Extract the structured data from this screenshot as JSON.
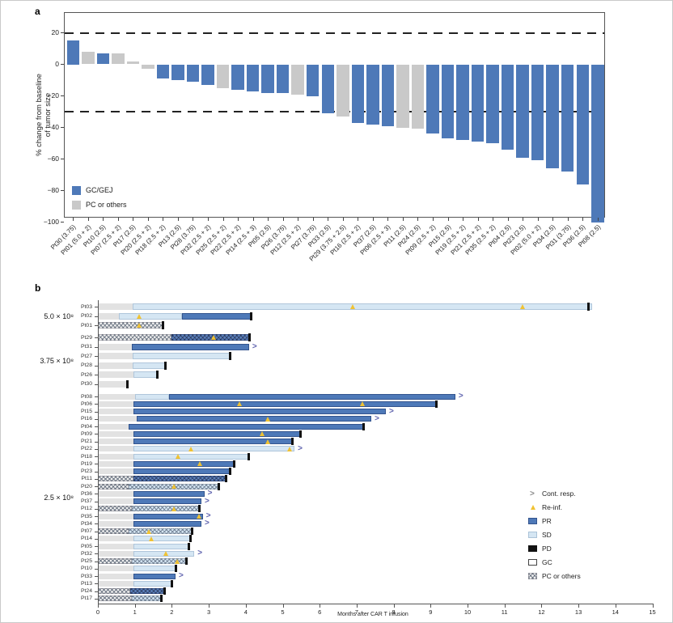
{
  "colors": {
    "gc_gej_blue": "#4e79b8",
    "pc_gray": "#c9c9c9",
    "sd_lightblue": "#d5e6f3",
    "pd_black": "#121212",
    "gc_lead_gray": "#e2e2e2",
    "reinf_yellow": "#f0c233",
    "cont_arrow_blue": "#5e62ae",
    "legend_arrow_gray": "#8a8a8a",
    "refline_black": "#222222"
  },
  "chart_data": [
    {
      "id": "a",
      "panel_label": "a",
      "type": "bar",
      "subtype": "waterfall",
      "ylabel": "% change from baseline of tumor size",
      "ylabel_lines": [
        "% change from baseline",
        "of tumor size"
      ],
      "ylim": [
        -100,
        25
      ],
      "yticks": [
        20,
        0,
        -20,
        -40,
        -60,
        -80,
        -100
      ],
      "reference_lines_y": [
        20,
        -30
      ],
      "grid": false,
      "legend_position": "bottom-left-inside",
      "legend": [
        {
          "label": "GC/GEJ",
          "colorKey": "gc_gej_blue"
        },
        {
          "label": "PC or others",
          "colorKey": "pc_gray"
        }
      ],
      "categories": [
        "Pt30 (3.75)",
        "Pt01 (5.0 + 2)",
        "Pt10 (2.5)",
        "Pt07 (2.5 + 2)",
        "Pt17 (2.5)",
        "Pt20 (2.5 + 2)",
        "Pt18 (2.5 + 2)",
        "Pt13 (2.5)",
        "Pt28 (3.75)",
        "Pt32 (2.5 + 2)",
        "Pt25 (2.5 + 2)",
        "Pt22 (2.5 + 2)",
        "Pt14 (2.5 + 3)",
        "Pt05 (2.5)",
        "Pt26 (3.75)",
        "Pt12 (2.5 + 2)",
        "Pt27 (3.75)",
        "Pt33 (2.5)",
        "Pt29 (3.75 + 2.5)",
        "Pt16 (2.5 + 2)",
        "Pt37 (2.5)",
        "Pt06 (2.5 + 3)",
        "Pt11 (2.5)",
        "Pt24 (2.5)",
        "Pt09 (2.5 + 2)",
        "Pt15 (2.5)",
        "Pt19 (2.5 + 2)",
        "Pt21 (2.5 + 2)",
        "Pt35 (2.5 + 2)",
        "Pt04 (2.5)",
        "Pt23 (2.5)",
        "Pt02 (5.0 + 2)",
        "Pt34 (2.5)",
        "Pt31 (3.75)",
        "Pt36 (2.5)",
        "Pt08 (2.5)"
      ],
      "values": [
        15,
        8,
        7,
        7,
        2,
        -3,
        -9,
        -10,
        -11,
        -13,
        -15,
        -16,
        -17,
        -18,
        -18,
        -19,
        -20,
        -31,
        -33,
        -37,
        -38,
        -39,
        -40,
        -41,
        -44,
        -47,
        -48,
        -49,
        -50,
        -54,
        -59,
        -61,
        -66,
        -68,
        -76,
        -100
      ],
      "groups": [
        "GC/GEJ",
        "PC or others",
        "GC/GEJ",
        "PC or others",
        "PC or others",
        "PC or others",
        "GC/GEJ",
        "GC/GEJ",
        "GC/GEJ",
        "GC/GEJ",
        "PC or others",
        "GC/GEJ",
        "GC/GEJ",
        "GC/GEJ",
        "GC/GEJ",
        "PC or others",
        "GC/GEJ",
        "GC/GEJ",
        "PC or others",
        "GC/GEJ",
        "GC/GEJ",
        "GC/GEJ",
        "PC or others",
        "PC or others",
        "GC/GEJ",
        "GC/GEJ",
        "GC/GEJ",
        "GC/GEJ",
        "GC/GEJ",
        "GC/GEJ",
        "GC/GEJ",
        "GC/GEJ",
        "GC/GEJ",
        "GC/GEJ",
        "GC/GEJ",
        "GC/GEJ"
      ]
    },
    {
      "id": "b",
      "panel_label": "b",
      "type": "swimmer",
      "xlabel": "Months after CAR T infusion",
      "xlim": [
        0,
        15
      ],
      "xticks": [
        0,
        1,
        2,
        3,
        4,
        5,
        6,
        7,
        8,
        9,
        10,
        11,
        12,
        13,
        14,
        15
      ],
      "legend": [
        {
          "key": "cont",
          "label": "Cont. resp."
        },
        {
          "key": "reinf",
          "label": "Re-inf."
        },
        {
          "key": "pr",
          "label": "PR"
        },
        {
          "key": "sd",
          "label": "SD"
        },
        {
          "key": "pd",
          "label": "PD"
        },
        {
          "key": "gc",
          "label": "GC"
        },
        {
          "key": "pc",
          "label": "PC or others"
        }
      ],
      "groups": [
        {
          "label": "5.0 × 10⁸",
          "rows": [
            {
              "label": "Pt03",
              "segments": [
                [
                  "gc",
                  0,
                  0.93
                ],
                [
                  "sd",
                  0.93,
                  13.37
                ]
              ],
              "pd": 13.3,
              "reinf": [
                6.9,
                11.5
              ],
              "cont": false
            },
            {
              "label": "Pt02",
              "segments": [
                [
                  "gc",
                  0,
                  0.57
                ],
                [
                  "sd",
                  0.57,
                  2.28
                ],
                [
                  "pr",
                  2.28,
                  4.16
                ]
              ],
              "pd": 4.16,
              "reinf": [
                1.13
              ],
              "cont": false
            },
            {
              "label": "Pt01",
              "segments": [
                [
                  "pc",
                  0,
                  1.79
                ]
              ],
              "pd": 1.79,
              "reinf": [
                1.13
              ],
              "cont": false
            }
          ]
        },
        {
          "label": "3.75 × 10⁸",
          "rows": [
            {
              "label": "Pt29",
              "segments": [
                [
                  "pc",
                  0,
                  2.0
                ],
                [
                  "pr_hatch",
                  2.0,
                  4.12
                ]
              ],
              "pd": 4.12,
              "reinf": [
                3.14
              ],
              "cont": false
            },
            {
              "label": "Pt31",
              "segments": [
                [
                  "gc",
                  0,
                  0.91
                ],
                [
                  "pr",
                  0.91,
                  4.09
                ]
              ],
              "pd": null,
              "reinf": [],
              "cont": true
            },
            {
              "label": "Pt27",
              "segments": [
                [
                  "gc",
                  0,
                  0.93
                ],
                [
                  "sd",
                  0.93,
                  3.61
                ]
              ],
              "pd": 3.61,
              "reinf": [],
              "cont": false
            },
            {
              "label": "Pt28",
              "segments": [
                [
                  "gc",
                  0,
                  0.93
                ],
                [
                  "sd",
                  0.93,
                  1.84
                ]
              ],
              "pd": 1.84,
              "reinf": [],
              "cont": false
            },
            {
              "label": "Pt26",
              "segments": [
                [
                  "gc",
                  0,
                  0.96
                ],
                [
                  "sd",
                  0.96,
                  1.62
                ]
              ],
              "pd": 1.62,
              "reinf": [],
              "cont": false
            },
            {
              "label": "Pt30",
              "segments": [
                [
                  "gc",
                  0,
                  0.82
                ]
              ],
              "pd": 0.82,
              "reinf": [],
              "cont": false
            }
          ]
        },
        {
          "label": "2.5 × 10⁸",
          "rows": [
            {
              "label": "Pt08",
              "segments": [
                [
                  "gc",
                  0,
                  1.0
                ],
                [
                  "sd",
                  1.0,
                  1.93
                ],
                [
                  "pr",
                  1.93,
                  9.67
                ]
              ],
              "pd": null,
              "reinf": [],
              "cont": true
            },
            {
              "label": "Pt06",
              "segments": [
                [
                  "gc",
                  0,
                  0.96
                ],
                [
                  "pr",
                  0.96,
                  9.17
                ]
              ],
              "pd": 9.17,
              "reinf": [
                3.84,
                7.17
              ],
              "cont": false
            },
            {
              "label": "Pt15",
              "segments": [
                [
                  "gc",
                  0,
                  0.96
                ],
                [
                  "pr",
                  0.96,
                  7.79
                ]
              ],
              "pd": null,
              "reinf": [],
              "cont": true
            },
            {
              "label": "Pt16",
              "segments": [
                [
                  "gc",
                  0,
                  1.04
                ],
                [
                  "pr",
                  1.04,
                  7.4
                ]
              ],
              "pd": null,
              "reinf": [
                4.61
              ],
              "cont": true
            },
            {
              "label": "Pt04",
              "segments": [
                [
                  "gc",
                  0,
                  0.84
                ],
                [
                  "pr",
                  0.84,
                  7.2
                ]
              ],
              "pd": 7.2,
              "reinf": [],
              "cont": false
            },
            {
              "label": "Pt09",
              "segments": [
                [
                  "gc",
                  0,
                  0.96
                ],
                [
                  "pr",
                  0.96,
                  5.5
                ]
              ],
              "pd": 5.5,
              "reinf": [
                4.46
              ],
              "cont": false
            },
            {
              "label": "Pt21",
              "segments": [
                [
                  "gc",
                  0,
                  0.96
                ],
                [
                  "pr",
                  0.96,
                  5.28
                ]
              ],
              "pd": 5.28,
              "reinf": [
                4.61
              ],
              "cont": false
            },
            {
              "label": "Pt22",
              "segments": [
                [
                  "gc",
                  0,
                  0.96
                ],
                [
                  "sd",
                  0.96,
                  5.32
                ]
              ],
              "pd": null,
              "reinf": [
                2.53,
                5.2
              ],
              "cont": true
            },
            {
              "label": "Pt18",
              "segments": [
                [
                  "gc",
                  0,
                  0.96
                ],
                [
                  "sd",
                  0.96,
                  4.1
                ]
              ],
              "pd": 4.1,
              "reinf": [
                2.18
              ],
              "cont": false
            },
            {
              "label": "Pt19",
              "segments": [
                [
                  "gc",
                  0,
                  0.96
                ],
                [
                  "pr",
                  0.96,
                  3.71
                ]
              ],
              "pd": 3.71,
              "reinf": [
                2.77
              ],
              "cont": false
            },
            {
              "label": "Pt23",
              "segments": [
                [
                  "gc",
                  0,
                  0.96
                ],
                [
                  "pr",
                  0.96,
                  3.6
                ]
              ],
              "pd": 3.6,
              "reinf": [],
              "cont": false
            },
            {
              "label": "Pt11",
              "segments": [
                [
                  "pc",
                  0,
                  0.96
                ],
                [
                  "pr_hatch",
                  0.96,
                  3.5
                ]
              ],
              "pd": 3.5,
              "reinf": [],
              "cont": false
            },
            {
              "label": "Pt20",
              "segments": [
                [
                  "pc",
                  0,
                  0.84
                ],
                [
                  "sd_hatch",
                  0.84,
                  3.3
                ]
              ],
              "pd": 3.3,
              "reinf": [
                2.06
              ],
              "cont": false
            },
            {
              "label": "Pt36",
              "segments": [
                [
                  "gc",
                  0,
                  0.96
                ],
                [
                  "pr",
                  0.96,
                  2.88
                ]
              ],
              "pd": null,
              "reinf": [],
              "cont": true
            },
            {
              "label": "Pt37",
              "segments": [
                [
                  "gc",
                  0,
                  0.96
                ],
                [
                  "pr",
                  0.96,
                  2.8
                ]
              ],
              "pd": null,
              "reinf": [],
              "cont": true
            },
            {
              "label": "Pt12",
              "segments": [
                [
                  "pc",
                  0,
                  0.92
                ],
                [
                  "sd_hatch",
                  0.92,
                  2.77
                ]
              ],
              "pd": 2.77,
              "reinf": [
                2.07
              ],
              "cont": false
            },
            {
              "label": "Pt35",
              "segments": [
                [
                  "gc",
                  0,
                  0.96
                ],
                [
                  "pr",
                  0.96,
                  2.84
                ]
              ],
              "pd": null,
              "reinf": [
                2.75
              ],
              "cont": true
            },
            {
              "label": "Pt34",
              "segments": [
                [
                  "gc",
                  0,
                  0.96
                ],
                [
                  "pr",
                  0.96,
                  2.8
                ]
              ],
              "pd": null,
              "reinf": [],
              "cont": true
            },
            {
              "label": "Pt07",
              "segments": [
                [
                  "pc",
                  0,
                  0.84
                ],
                [
                  "sd_hatch",
                  0.84,
                  2.57
                ]
              ],
              "pd": 2.57,
              "reinf": [
                1.39
              ],
              "cont": false
            },
            {
              "label": "Pt14",
              "segments": [
                [
                  "gc",
                  0,
                  0.96
                ],
                [
                  "sd",
                  0.96,
                  2.53
                ]
              ],
              "pd": 2.53,
              "reinf": [
                1.45
              ],
              "cont": false
            },
            {
              "label": "Pt05",
              "segments": [
                [
                  "gc",
                  0,
                  0.96
                ],
                [
                  "sd",
                  0.96,
                  2.49
                ]
              ],
              "pd": 2.49,
              "reinf": [],
              "cont": false
            },
            {
              "label": "Pt32",
              "segments": [
                [
                  "gc",
                  0,
                  0.96
                ],
                [
                  "sd",
                  0.96,
                  2.61
                ]
              ],
              "pd": null,
              "reinf": [
                1.85
              ],
              "cont": true
            },
            {
              "label": "Pt25",
              "segments": [
                [
                  "pc",
                  0,
                  0.92
                ],
                [
                  "sd_hatch",
                  0.92,
                  2.41
                ]
              ],
              "pd": 2.41,
              "reinf": [
                2.15
              ],
              "cont": false
            },
            {
              "label": "Pt10",
              "segments": [
                [
                  "gc",
                  0,
                  0.96
                ],
                [
                  "sd",
                  0.96,
                  2.14
                ]
              ],
              "pd": 2.14,
              "reinf": [],
              "cont": false
            },
            {
              "label": "Pt33",
              "segments": [
                [
                  "gc",
                  0,
                  0.96
                ],
                [
                  "pr",
                  0.96,
                  2.1
                ]
              ],
              "pd": null,
              "reinf": [],
              "cont": true
            },
            {
              "label": "Pt13",
              "segments": [
                [
                  "gc",
                  0,
                  0.96
                ],
                [
                  "sd",
                  0.96,
                  2.02
                ]
              ],
              "pd": 2.02,
              "reinf": [],
              "cont": false
            },
            {
              "label": "Pt24",
              "segments": [
                [
                  "pc",
                  0,
                  0.88
                ],
                [
                  "pr_hatch",
                  0.88,
                  1.82
                ]
              ],
              "pd": 1.82,
              "reinf": [],
              "cont": false
            },
            {
              "label": "Pt17",
              "segments": [
                [
                  "pc",
                  0,
                  0.92
                ],
                [
                  "sd_hatch",
                  0.92,
                  1.75
                ]
              ],
              "pd": 1.75,
              "reinf": [],
              "cont": false
            }
          ]
        }
      ]
    }
  ]
}
